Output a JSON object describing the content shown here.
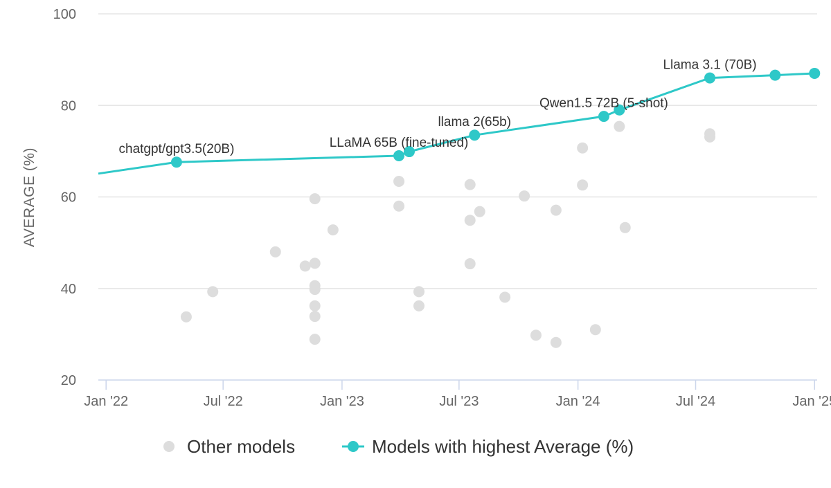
{
  "chart_data": {
    "type": "scatter",
    "title": "",
    "xlabel": "",
    "ylabel": "AVERAGE (%)",
    "x_type": "date",
    "xlim": [
      "2021-12-20",
      "2025-01-05"
    ],
    "ylim": [
      20,
      100
    ],
    "x_ticks": [
      {
        "date": "2022-01-01",
        "label": "Jan '22"
      },
      {
        "date": "2022-07-01",
        "label": "Jul '22"
      },
      {
        "date": "2023-01-01",
        "label": "Jan '23"
      },
      {
        "date": "2023-07-01",
        "label": "Jul '23"
      },
      {
        "date": "2024-01-01",
        "label": "Jan '24"
      },
      {
        "date": "2024-07-01",
        "label": "Jul '24"
      },
      {
        "date": "2025-01-01",
        "label": "Jan '25"
      }
    ],
    "y_ticks": [
      20,
      40,
      60,
      80,
      100
    ],
    "grid": true,
    "legend_position": "bottom",
    "series": [
      {
        "name": "Other models",
        "kind": "scatter",
        "color": "#dddddd",
        "points": [
          {
            "x": "2022-05-05",
            "y": 33.8
          },
          {
            "x": "2022-06-15",
            "y": 39.3
          },
          {
            "x": "2022-09-20",
            "y": 48.0
          },
          {
            "x": "2022-11-05",
            "y": 44.9
          },
          {
            "x": "2022-11-20",
            "y": 59.6
          },
          {
            "x": "2022-11-20",
            "y": 45.5
          },
          {
            "x": "2022-11-20",
            "y": 40.6
          },
          {
            "x": "2022-11-20",
            "y": 39.8
          },
          {
            "x": "2022-11-20",
            "y": 36.2
          },
          {
            "x": "2022-11-20",
            "y": 33.9
          },
          {
            "x": "2022-11-20",
            "y": 28.9
          },
          {
            "x": "2022-12-18",
            "y": 52.8
          },
          {
            "x": "2023-03-30",
            "y": 63.4
          },
          {
            "x": "2023-03-30",
            "y": 58.0
          },
          {
            "x": "2023-04-30",
            "y": 39.3
          },
          {
            "x": "2023-04-30",
            "y": 36.2
          },
          {
            "x": "2023-07-18",
            "y": 62.7
          },
          {
            "x": "2023-07-18",
            "y": 54.9
          },
          {
            "x": "2023-07-18",
            "y": 45.4
          },
          {
            "x": "2023-08-02",
            "y": 56.8
          },
          {
            "x": "2023-09-10",
            "y": 38.1
          },
          {
            "x": "2023-10-10",
            "y": 60.2
          },
          {
            "x": "2023-10-28",
            "y": 29.8
          },
          {
            "x": "2023-11-28",
            "y": 57.1
          },
          {
            "x": "2023-11-28",
            "y": 28.2
          },
          {
            "x": "2024-01-08",
            "y": 70.7
          },
          {
            "x": "2024-01-08",
            "y": 62.6
          },
          {
            "x": "2024-01-28",
            "y": 31.0
          },
          {
            "x": "2024-03-05",
            "y": 75.4
          },
          {
            "x": "2024-03-14",
            "y": 53.3
          },
          {
            "x": "2024-07-23",
            "y": 73.8
          },
          {
            "x": "2024-07-23",
            "y": 73.1
          }
        ]
      },
      {
        "name": "Models with highest Average (%)",
        "kind": "line",
        "color": "#2ec8c8",
        "points": [
          {
            "x": "2021-12-20",
            "y": 65.1
          },
          {
            "x": "2022-04-20",
            "y": 67.6
          },
          {
            "x": "2023-03-30",
            "y": 69.0
          },
          {
            "x": "2023-04-15",
            "y": 69.9
          },
          {
            "x": "2023-07-25",
            "y": 73.5
          },
          {
            "x": "2024-02-10",
            "y": 77.6
          },
          {
            "x": "2024-03-05",
            "y": 79.0
          },
          {
            "x": "2024-07-23",
            "y": 86.0
          },
          {
            "x": "2024-11-01",
            "y": 86.6
          },
          {
            "x": "2025-01-01",
            "y": 87.0
          }
        ],
        "markers": [
          false,
          true,
          true,
          true,
          true,
          true,
          true,
          true,
          true,
          true
        ]
      }
    ],
    "annotations": [
      {
        "text": "chatgpt/gpt3.5(20B)",
        "x": "2022-04-20",
        "y": 67.6
      },
      {
        "text": "LLaMA 65B (fine-tuned)",
        "x": "2023-03-30",
        "y": 69.0
      },
      {
        "text": "llama 2(65b)",
        "x": "2023-07-25",
        "y": 73.5
      },
      {
        "text": "Qwen1.5 72B (5-shot)",
        "x": "2024-02-10",
        "y": 77.6
      },
      {
        "text": "Llama 3.1 (70B)",
        "x": "2024-07-23",
        "y": 86.0
      }
    ]
  },
  "legend": {
    "other_label": "Other models",
    "highest_label": "Models with highest Average (%)"
  }
}
